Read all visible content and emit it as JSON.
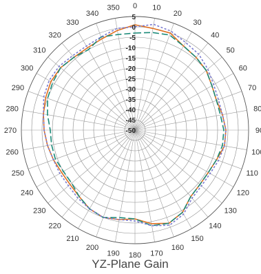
{
  "chart_data": {
    "type": "polar",
    "title": "YZ-Plane Gain",
    "angle_unit": "deg",
    "theta_direction": "clockwise",
    "theta_zero": "top",
    "angle_ticks": [
      0,
      10,
      20,
      30,
      40,
      50,
      60,
      70,
      80,
      90,
      100,
      110,
      120,
      130,
      140,
      150,
      160,
      170,
      180,
      190,
      200,
      210,
      220,
      230,
      240,
      250,
      260,
      270,
      280,
      290,
      300,
      310,
      320,
      330,
      340,
      350
    ],
    "angle_tick_labels": [
      "0",
      "10",
      "20",
      "30",
      "40",
      "50",
      "60",
      "70",
      "80",
      "90",
      "100",
      "110",
      "120",
      "130",
      "140",
      "150",
      "160",
      "170",
      "180",
      "190",
      "200",
      "210",
      "220",
      "230",
      "240",
      "250",
      "260",
      "270",
      "280",
      "290",
      "300",
      "310",
      "320",
      "330",
      "340",
      "350"
    ],
    "r_range": [
      -50,
      5
    ],
    "r_ticks": [
      5,
      0,
      -5,
      -10,
      -15,
      -20,
      -25,
      -30,
      -35,
      -40,
      -45,
      -50
    ],
    "r_tick_labels": [
      "5",
      "0",
      "-5",
      "-10",
      "-15",
      "-20",
      "-25",
      "-30",
      "-35",
      "-40",
      "-45",
      "-50"
    ],
    "grid": true,
    "series": [
      {
        "color": "#e07020",
        "style": "solid",
        "theta": [
          0,
          10,
          20,
          30,
          40,
          50,
          60,
          70,
          80,
          90,
          100,
          110,
          120,
          130,
          140,
          150,
          160,
          170,
          180,
          190,
          200,
          210,
          220,
          230,
          240,
          250,
          260,
          270,
          280,
          290,
          300,
          310,
          320,
          330,
          340,
          350
        ],
        "r": [
          1,
          0,
          0,
          -3,
          -4,
          -5,
          -7,
          -8,
          -7,
          -6,
          -6,
          -8,
          -9,
          -9,
          -8,
          -4,
          -2,
          -4,
          -7,
          -6,
          -5,
          -6,
          -8,
          -9,
          -9,
          -8,
          -7,
          -6,
          -5,
          -4,
          -3,
          -3,
          -4,
          -4,
          -3,
          -1
        ]
      },
      {
        "color": "#1a8a78",
        "style": "dashed",
        "theta": [
          0,
          10,
          20,
          30,
          40,
          50,
          60,
          70,
          80,
          90,
          100,
          110,
          120,
          130,
          140,
          150,
          160,
          170,
          180,
          190,
          200,
          210,
          220,
          230,
          240,
          250,
          260,
          270,
          280,
          290,
          300,
          310,
          320,
          330,
          340,
          350
        ],
        "r": [
          -3,
          -2,
          -1,
          -3,
          -4,
          -5,
          -7,
          -8,
          -8,
          -7,
          -7,
          -8,
          -9,
          -9,
          -8,
          -4,
          -2,
          -3,
          -7,
          -7,
          -5,
          -6,
          -8,
          -10,
          -10,
          -9,
          -9,
          -9,
          -7,
          -5,
          -4,
          -3,
          -4,
          -5,
          -2,
          -3
        ]
      },
      {
        "color": "#7a7ad0",
        "style": "dotted",
        "theta": [
          0,
          10,
          20,
          30,
          40,
          50,
          60,
          70,
          80,
          90,
          100,
          110,
          120,
          130,
          140,
          150,
          160,
          170,
          180,
          190,
          200,
          210,
          220,
          230,
          240,
          250,
          260,
          270,
          280,
          290,
          300,
          310,
          320,
          330,
          340,
          350
        ],
        "r": [
          0,
          2,
          1,
          -1,
          -2,
          -4,
          -6,
          -7,
          -7,
          -6,
          -6,
          -7,
          -8,
          -8,
          -7,
          -3,
          -1,
          -3,
          -6,
          -6,
          -5,
          -6,
          -7,
          -8,
          -8,
          -8,
          -7,
          -6,
          -5,
          -3,
          -2,
          -2,
          -3,
          -3,
          -2,
          0
        ]
      }
    ]
  }
}
